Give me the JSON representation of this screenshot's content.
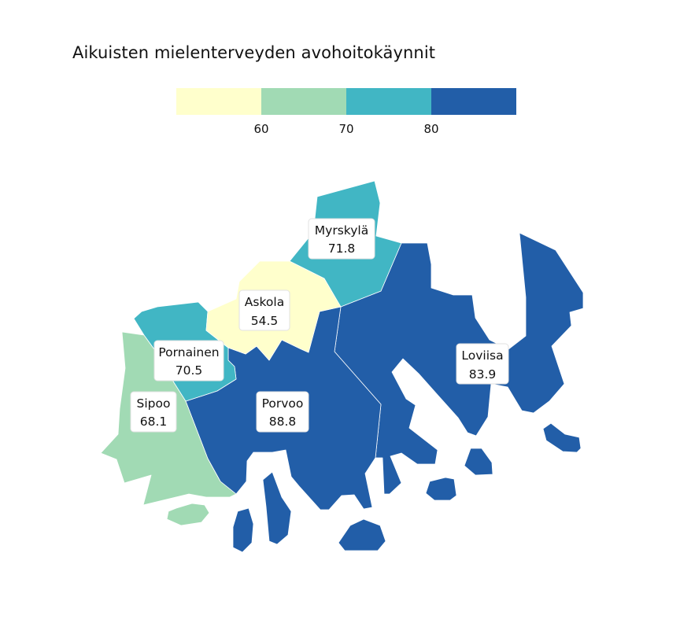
{
  "title": "Aikuisten mielenterveyden avohoitokäynnit",
  "legend": {
    "bins": [
      {
        "color": "#ffffcc"
      },
      {
        "color": "#a1dab4"
      },
      {
        "color": "#41b6c4"
      },
      {
        "color": "#225ea8"
      }
    ],
    "ticks": [
      "60",
      "70",
      "80"
    ]
  },
  "regions": [
    {
      "name": "Myrskylä",
      "value": "71.8",
      "color": "#41b6c4"
    },
    {
      "name": "Askola",
      "value": "54.5",
      "color": "#ffffcc"
    },
    {
      "name": "Pornainen",
      "value": "70.5",
      "color": "#41b6c4"
    },
    {
      "name": "Loviisa",
      "value": "83.9",
      "color": "#225ea8"
    },
    {
      "name": "Sipoo",
      "value": "68.1",
      "color": "#a1dab4"
    },
    {
      "name": "Porvoo",
      "value": "88.8",
      "color": "#225ea8"
    }
  ]
}
